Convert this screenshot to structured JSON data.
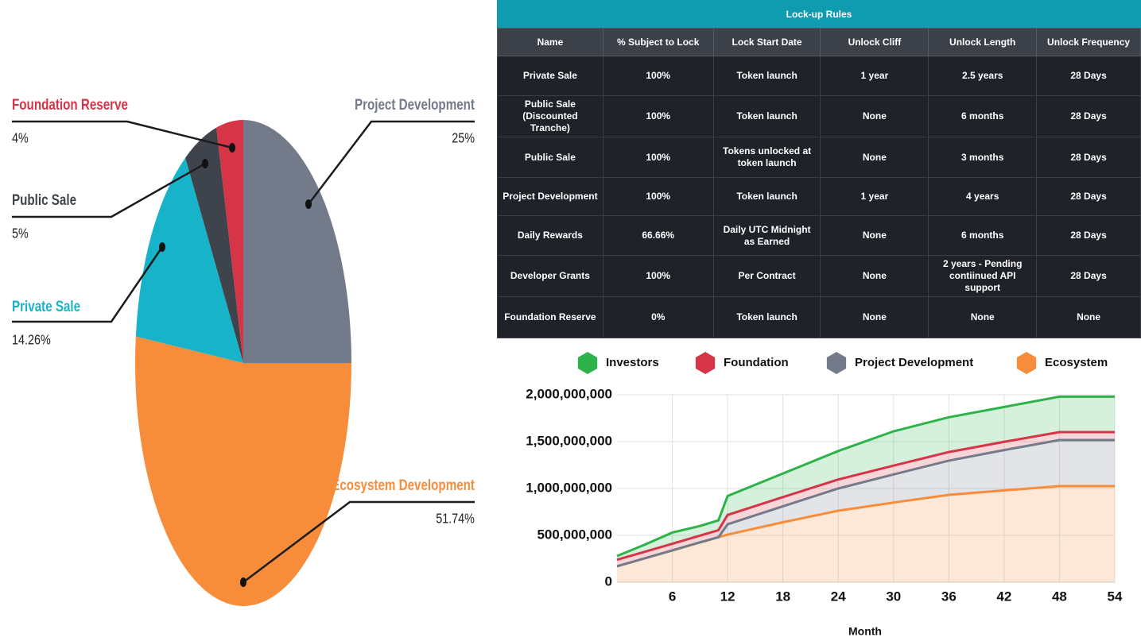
{
  "chart_data": [
    {
      "type": "pie",
      "categories": [
        "Project Development",
        "Ecosystem Development",
        "Private Sale",
        "Public Sale",
        "Foundation Reserve"
      ],
      "values": [
        25,
        51.74,
        14.26,
        5,
        4
      ],
      "value_labels": [
        "25%",
        "51.74%",
        "14.26%",
        "5%",
        "4%"
      ],
      "colors": [
        "#737a8a",
        "#f78d3a",
        "#17b3c9",
        "#3f444c",
        "#d63447"
      ]
    },
    {
      "type": "area",
      "stacked": true,
      "x_label": "Month",
      "x": [
        0,
        3,
        6,
        9,
        11,
        12,
        18,
        24,
        30,
        36,
        42,
        48,
        54
      ],
      "series": [
        {
          "name": "Investors",
          "color": "#2db34a",
          "values": [
            40000000,
            75000000,
            120000000,
            103000000,
            105000000,
            202000000,
            252000000,
            304000000,
            366000000,
            371000000,
            372000000,
            378000000,
            378000000
          ]
        },
        {
          "name": "Foundation",
          "color": "#d63447",
          "values": [
            70000000,
            70000000,
            70000000,
            72000000,
            75000000,
            100000000,
            98000000,
            96000000,
            94000000,
            92000000,
            88000000,
            85000000,
            85000000
          ]
        },
        {
          "name": "Project Development",
          "color": "#737a8a",
          "values": [
            0,
            0,
            0,
            0,
            0,
            110000000,
            170000000,
            237000000,
            300000000,
            365000000,
            430000000,
            492000000,
            492000000
          ]
        },
        {
          "name": "Ecosystem",
          "color": "#f78d3a",
          "values": [
            170000000,
            255000000,
            340000000,
            425000000,
            480000000,
            508000000,
            640000000,
            763000000,
            850000000,
            932000000,
            980000000,
            1025000000,
            1025000000
          ]
        }
      ],
      "xlim": [
        0,
        54
      ],
      "xticks": [
        6,
        12,
        18,
        24,
        30,
        36,
        42,
        48,
        54
      ],
      "ylim": [
        0,
        2000000000
      ],
      "yticks": [
        0,
        {
          "value": 500000000,
          "label": "500,000,000"
        },
        {
          "value": 1000000000,
          "label": "1,000,000,000"
        },
        {
          "value": 1500000000,
          "label": "1,500,000,000"
        },
        {
          "value": 2000000000,
          "label": "2,000,000,000"
        }
      ],
      "grid": true
    }
  ],
  "table": {
    "title": "Lock-up Rules",
    "columns": [
      "Name",
      "% Subject to Lock",
      "Lock Start Date",
      "Unlock Cliff",
      "Unlock Length",
      "Unlock Frequency"
    ],
    "rows": [
      [
        "Private Sale",
        "100%",
        "Token launch",
        "1 year",
        "2.5 years",
        "28 Days"
      ],
      [
        "Public Sale (Discounted Tranche)",
        "100%",
        "Token launch",
        "None",
        "6 months",
        "28 Days"
      ],
      [
        "Public Sale",
        "100%",
        "Tokens unlocked at token launch",
        "None",
        "3 months",
        "28 Days"
      ],
      [
        "Project Development",
        "100%",
        "Token launch",
        "1 year",
        "4 years",
        "28 Days"
      ],
      [
        "Daily Rewards",
        "66.66%",
        "Daily UTC Midnight as Earned",
        "None",
        "6 months",
        "28 Days"
      ],
      [
        "Developer Grants",
        "100%",
        "Per Contract",
        "None",
        "2 years - Pending contiinued API support",
        "28 Days"
      ],
      [
        "Foundation Reserve",
        "0%",
        "Token launch",
        "None",
        "None",
        "None"
      ]
    ]
  }
}
